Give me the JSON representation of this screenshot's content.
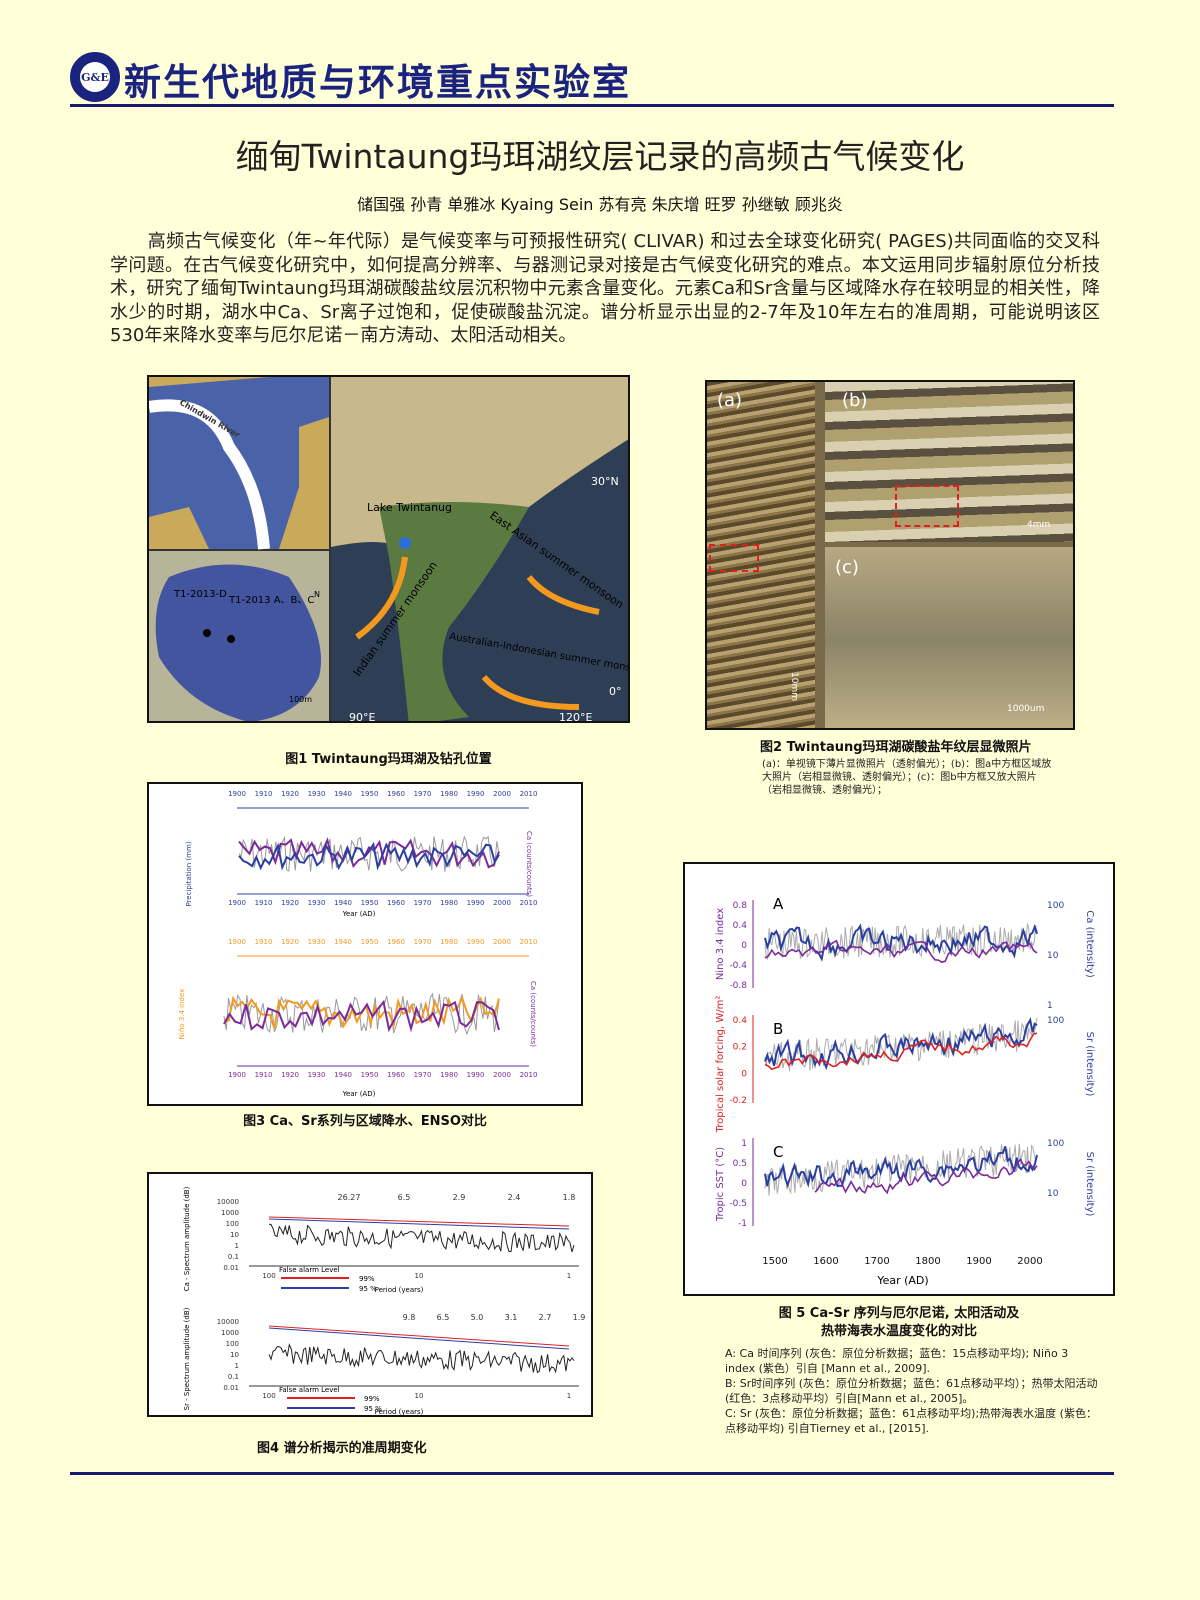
{
  "header": {
    "logo_text": "G&E",
    "lab_name": "新生代地质与环境重点实验室"
  },
  "title": "缅甸Twintaung玛珥湖纹层记录的高频古气候变化",
  "authors": "储国强  孙青  单雅冰 Kyaing Sein 苏有亮 朱庆增 旺罗  孙继敏  顾兆炎",
  "abstract": "高频古气候变化（年~年代际）是气候变率与可预报性研究( CLIVAR) 和过去全球变化研究( PAGES)共同面临的交叉科学问题。在古气候变化研究中，如何提高分辨率、与器测记录对接是古气候变化研究的难点。本文运用同步辐射原位分析技术，研究了缅甸Twintaung玛珥湖碳酸盐纹层沉积物中元素含量变化。元素Ca和Sr含量与区域降水存在较明显的相关性，降水少的时期，湖水中Ca、Sr离子过饱和，促使碳酸盐沉淀。谱分析显示出显的2-7年及10年左右的准周期，可能说明该区530年来降水变率与厄尔尼诺－南方涛动、太阳活动相关。",
  "fig1": {
    "caption": "图1 Twintaung玛珥湖及钻孔位置",
    "map_labels": {
      "lake": "Lake Twintanug",
      "lat": "30°N",
      "eq": "0°",
      "lon1": "90°E",
      "lon2": "120°E",
      "east_asian": "East Asian summer monsoon",
      "indian": "Indian summer monsoon",
      "aus": "Australian-Indonesian summer monsoon",
      "core1": "T1-2013-D",
      "core2": "T1-2013 A、B、C",
      "scale": "100m",
      "north": "N",
      "river": "Chindwin River"
    }
  },
  "fig2": {
    "caption": "图2 Twintaung玛珥湖碳酸盐年纹层显微照片",
    "note": "(a)：单视镜下薄片显微照片（透射偏光）；(b)：图a中方框区域放大照片（岩相显微镜、透射偏光）；(c)：图b中方框又放大照片（岩相显微镜、透射偏光）；",
    "panels": [
      "(a)",
      "(b)",
      "(c)"
    ],
    "scales": [
      "10mm",
      "4mm",
      "1000um"
    ]
  },
  "fig3": {
    "caption": "图3 Ca、Sr系列与区域降水、ENSO对比",
    "xlabel": "Year (AD)",
    "years": [
      "1900",
      "1910",
      "1920",
      "1930",
      "1940",
      "1950",
      "1960",
      "1970",
      "1980",
      "1990",
      "2000",
      "2010"
    ],
    "ylabel_top": "Precipitation (mm)",
    "ylabel_top_r": "Ca (counts/counts)",
    "ylabel_bot": "Niño 3.4 index",
    "ylabel_bot_r": "Ca (counts/counts)"
  },
  "fig4": {
    "caption": "图4  谱分析揭示的准周期变化",
    "xlabel": "Period (years)",
    "ylabel_top": "Ca - Spectrum amplitude (dB)",
    "ylabel_bot": "Sr - Spectrum amplitude (dB)",
    "yticks": [
      "10000",
      "1000",
      "100",
      "10",
      "1",
      "0.1",
      "0.01"
    ],
    "xticks": [
      "100",
      "10",
      "1"
    ],
    "legend_title": "False alarm Level",
    "legend": [
      "99%",
      "95 %"
    ],
    "peaks_top": [
      "26.27",
      "6.5",
      "2.9",
      "2.4",
      "1.8"
    ],
    "peaks_bot": [
      "9.8",
      "6.5",
      "5.0",
      "3.1",
      "2.7",
      "1.9"
    ]
  },
  "fig5": {
    "caption_l1": "图 5   Ca-Sr 序列与厄尔尼诺, 太阳活动及",
    "caption_l2": "热带海表水温度变化的对比",
    "panels": [
      "A",
      "B",
      "C"
    ],
    "xlabel": "Year (AD)",
    "xticks": [
      "1500",
      "1600",
      "1700",
      "1800",
      "1900",
      "2000"
    ],
    "ylabelA": "Nino 3.4 index",
    "ylabelA_r": "Ca (intensity)",
    "yticksA": [
      "0.8",
      "0.4",
      "0",
      "-0.4",
      "-0.8"
    ],
    "rticksA": [
      "100",
      "10",
      "1"
    ],
    "ylabelB": "Tropical solar forcing, W/m²",
    "ylabelB_r": "Sr (intensity)",
    "yticksB": [
      "0.4",
      "0.2",
      "0",
      "-0.2"
    ],
    "rticksB": [
      "100"
    ],
    "ylabelC": "Tropic SST (°C)",
    "ylabelC_r": "Sr (intensity)",
    "yticksC": [
      "1",
      "0.5",
      "0",
      "-0.5",
      "-1"
    ],
    "rticksC": [
      "100",
      "10"
    ],
    "notes": [
      "A: Ca 时间序列 (灰色：原位分析数据；蓝色：15点移动平均); Niño 3 index (紫色）引自 [Mann et al., 2009].",
      "B: Sr时间序列 (灰色：原位分析数据；蓝色：61点移动平均）；热带太阳活动 (红色：3点移动平均）引自[Mann et al., 2005]。",
      "C: Sr (灰色：原位分析数据；蓝色：61点移动平均);热带海表水温度 (紫色：点移动平均) 引自Tierney et al., [2015]."
    ]
  },
  "colors": {
    "bg": "#ffffd8",
    "navy": "#1a237e",
    "orange": "#f39a1e",
    "blue": "#2b3fa0",
    "purple": "#7a2a9a",
    "red": "#e02020"
  }
}
